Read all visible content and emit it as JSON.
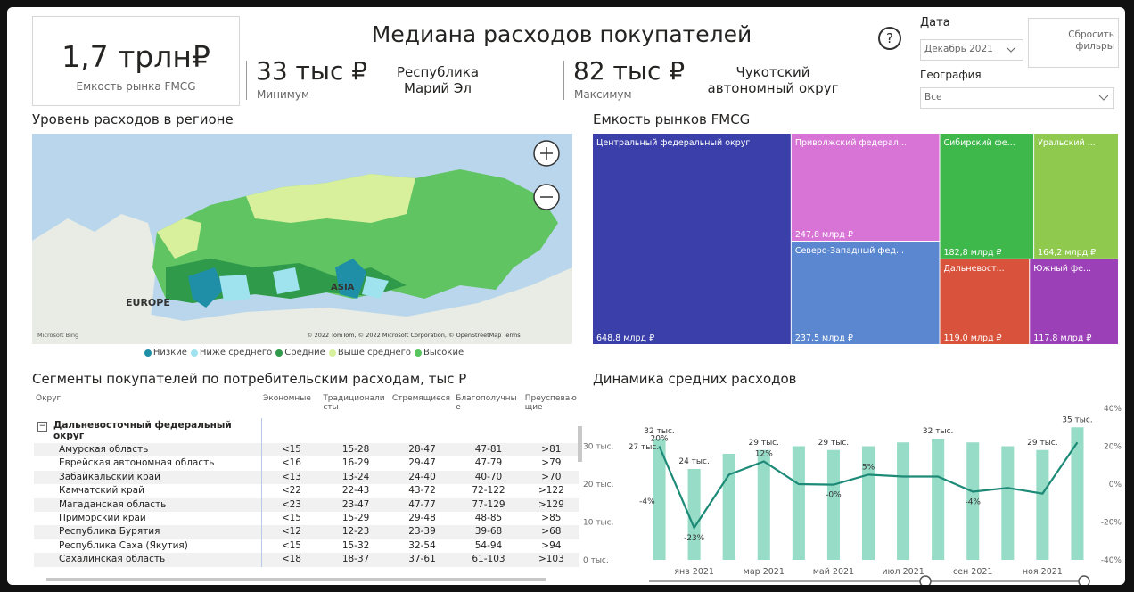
{
  "header": {
    "title": "Медиана расходов покупателей",
    "market_value": "1,7 трлн₽",
    "market_label": "Емкость рынка FMCG",
    "min_value": "33 тыс ₽",
    "min_label": "Минимум",
    "min_region": "Республика Марий Эл",
    "max_value": "82 тыс ₽",
    "max_label": "Максимум",
    "max_region": "Чукотский автономный округ",
    "help": "?"
  },
  "filters": {
    "date_label": "Дата",
    "date_value": "Декабрь 2021",
    "reset": "Сбросить фильры",
    "geo_label": "География",
    "geo_value": "Все"
  },
  "map": {
    "title": "Уровень расходов в регионе",
    "labels": [
      "EUROPE",
      "ASIA"
    ],
    "attribution": "© 2022 TomTom, © 2022 Microsoft Corporation, © OpenStreetMap  Terms",
    "provider": "Microsoft Bing",
    "legend": [
      {
        "name": "Низкие",
        "color": "#1e8fa6"
      },
      {
        "name": "Ниже среднего",
        "color": "#9fe3ee"
      },
      {
        "name": "Средние",
        "color": "#2f9a4a"
      },
      {
        "name": "Выше среднего",
        "color": "#d6f09b"
      },
      {
        "name": "Высокие",
        "color": "#57c45e"
      }
    ]
  },
  "table": {
    "title": "Сегменты покупателей по потребительским расходам, тыс Р",
    "columns": [
      "Округ",
      "Экономные",
      "Традиционалисты",
      "Стремящиеся",
      "Благополучные",
      "Преуспевающие"
    ],
    "group": "Дальневосточный федеральный округ",
    "rows": [
      [
        "Амурская область",
        "<15",
        "15-28",
        "28-47",
        "47-81",
        ">81"
      ],
      [
        "Еврейская автономная область",
        "<16",
        "16-29",
        "29-47",
        "47-79",
        ">79"
      ],
      [
        "Забайкальский край",
        "<13",
        "13-24",
        "24-40",
        "40-70",
        ">70"
      ],
      [
        "Камчатский край",
        "<22",
        "22-43",
        "43-72",
        "72-122",
        ">122"
      ],
      [
        "Магаданская область",
        "<23",
        "23-47",
        "47-77",
        "77-129",
        ">129"
      ],
      [
        "Приморский край",
        "<15",
        "15-29",
        "29-48",
        "48-85",
        ">85"
      ],
      [
        "Республика Бурятия",
        "<12",
        "12-23",
        "23-39",
        "39-68",
        ">68"
      ],
      [
        "Республика Саха (Якутия)",
        "<15",
        "15-32",
        "32-54",
        "54-94",
        ">94"
      ],
      [
        "Сахалинская область",
        "<18",
        "18-37",
        "37-61",
        "61-103",
        ">103"
      ]
    ]
  },
  "chart_data": [
    {
      "type": "treemap",
      "title": "Емкость рынков FMCG",
      "categories": [
        "Центральный федеральный округ",
        "Приволжский федерал...",
        "Северо-Западный фед...",
        "Сибирский фе...",
        "Уральский ...",
        "Дальневост...",
        "Южный фе..."
      ],
      "values": [
        648.8,
        247.8,
        237.5,
        182.8,
        164.2,
        119.0,
        117.8
      ],
      "value_labels": [
        "648,8 млрд ₽",
        "247,8 млрд ₽",
        "237,5 млрд ₽",
        "182,8 млрд ₽",
        "164,2 млрд ₽",
        "119,0 млрд ₽",
        "117,8 млрд ₽"
      ],
      "colors": [
        "#3a3faa",
        "#d774d6",
        "#5b87d0",
        "#3fb84b",
        "#8fca4e",
        "#d9523b",
        "#9c40b8"
      ]
    },
    {
      "type": "bar",
      "title": "Динамика средних расходов",
      "categories": [
        null,
        "янв 2021",
        null,
        "мар 2021",
        null,
        "май 2021",
        null,
        "июл 2021",
        null,
        "сен 2021",
        null,
        "ноя 2021",
        null
      ],
      "series": [
        {
          "color": "#97dcc6",
          "values": [
            32,
            24,
            28,
            29,
            30,
            29,
            30,
            31,
            32,
            31,
            30,
            29,
            35
          ],
          "value_labels": [
            "32 тыс.",
            "24 тыс.",
            null,
            "29 тыс.",
            null,
            "29 тыс.",
            null,
            null,
            "32 тыс.",
            null,
            null,
            "29 тыс.",
            "35 тыс."
          ]
        },
        {
          "type": "line",
          "axis": "y2",
          "color": "#1d8a78",
          "values": [
            20,
            -23,
            5,
            12,
            0,
            -0.3,
            5,
            4,
            4,
            -4,
            -2,
            -5,
            22
          ],
          "value_labels": [
            "20%",
            "-23%",
            null,
            "12%",
            null,
            "-0%",
            "5%",
            null,
            null,
            "-4%",
            null,
            null,
            null
          ]
        }
      ],
      "annotations": [
        "27 тыс.",
        "-4%"
      ],
      "ylim": [
        0,
        40
      ],
      "yticks": [
        {
          "value": 0,
          "label": "0 тыс."
        },
        {
          "value": 10,
          "label": "10 тыс."
        },
        {
          "value": 20,
          "label": "20 тыс."
        },
        {
          "value": 30,
          "label": "30 тыс."
        }
      ],
      "y2lim": [
        -40,
        40
      ],
      "y2ticks": [
        {
          "value": -40,
          "label": "-40%"
        },
        {
          "value": -20,
          "label": "-20%"
        },
        {
          "value": 0,
          "label": "0%"
        },
        {
          "value": 20,
          "label": "20%"
        },
        {
          "value": 40,
          "label": "40%"
        }
      ]
    }
  ]
}
